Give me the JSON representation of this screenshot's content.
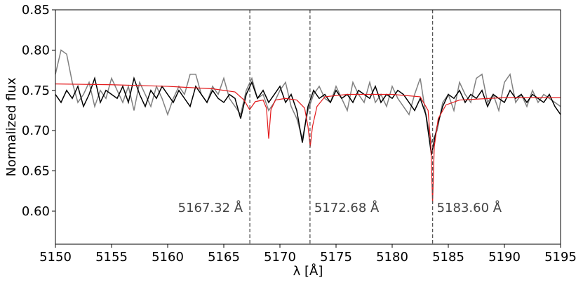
{
  "chart_data": {
    "type": "line",
    "xlabel": "λ [Å]",
    "ylabel": "Normalized flux",
    "xlim": [
      5150,
      5195
    ],
    "ylim": [
      0.559,
      0.85
    ],
    "xticks": [
      5150,
      5155,
      5160,
      5165,
      5170,
      5175,
      5180,
      5185,
      5190,
      5195
    ],
    "yticks": [
      {
        "value": 0.6,
        "label": "0.60"
      },
      0.65,
      {
        "value": 0.7,
        "label": "0.70"
      },
      0.75,
      {
        "value": 0.8,
        "label": "0.80"
      },
      0.85
    ],
    "x": [
      5150,
      5150.5,
      5151,
      5151.5,
      5152,
      5152.5,
      5153,
      5153.5,
      5154,
      5154.5,
      5155,
      5155.5,
      5156,
      5156.5,
      5157,
      5157.5,
      5158,
      5158.5,
      5159,
      5159.5,
      5160,
      5160.5,
      5161,
      5161.5,
      5162,
      5162.5,
      5163,
      5163.5,
      5164,
      5164.5,
      5165,
      5165.5,
      5166,
      5166.5,
      5167,
      5167.5,
      5168,
      5168.5,
      5169,
      5169.5,
      5170,
      5170.5,
      5171,
      5171.5,
      5172,
      5172.5,
      5173,
      5173.5,
      5174,
      5174.5,
      5175,
      5175.5,
      5176,
      5176.5,
      5177,
      5177.5,
      5178,
      5178.5,
      5179,
      5179.5,
      5180,
      5180.5,
      5181,
      5181.5,
      5182,
      5182.5,
      5183,
      5183.5,
      5184,
      5184.5,
      5185,
      5185.5,
      5186,
      5186.5,
      5187,
      5187.5,
      5188,
      5188.5,
      5189,
      5189.5,
      5190,
      5190.5,
      5191,
      5191.5,
      5192,
      5192.5,
      5193,
      5193.5,
      5194,
      5194.5,
      5195
    ],
    "series": [
      {
        "color": "#808080",
        "values": [
          0.77,
          0.8,
          0.795,
          0.76,
          0.735,
          0.745,
          0.76,
          0.73,
          0.75,
          0.74,
          0.765,
          0.75,
          0.735,
          0.755,
          0.725,
          0.76,
          0.745,
          0.73,
          0.755,
          0.74,
          0.72,
          0.74,
          0.755,
          0.745,
          0.77,
          0.77,
          0.745,
          0.735,
          0.755,
          0.745,
          0.765,
          0.74,
          0.73,
          0.72,
          0.75,
          0.765,
          0.74,
          0.745,
          0.725,
          0.735,
          0.75,
          0.76,
          0.73,
          0.715,
          0.69,
          0.725,
          0.745,
          0.755,
          0.74,
          0.735,
          0.755,
          0.74,
          0.725,
          0.76,
          0.745,
          0.735,
          0.76,
          0.735,
          0.745,
          0.73,
          0.755,
          0.74,
          0.73,
          0.72,
          0.745,
          0.765,
          0.72,
          0.685,
          0.7,
          0.735,
          0.745,
          0.725,
          0.76,
          0.745,
          0.735,
          0.765,
          0.77,
          0.735,
          0.745,
          0.725,
          0.76,
          0.77,
          0.735,
          0.745,
          0.73,
          0.75,
          0.735,
          0.745,
          0.74,
          0.735,
          0.73
        ]
      },
      {
        "color": "#000000",
        "values": [
          0.745,
          0.735,
          0.75,
          0.74,
          0.755,
          0.73,
          0.745,
          0.765,
          0.735,
          0.75,
          0.745,
          0.74,
          0.755,
          0.735,
          0.765,
          0.745,
          0.73,
          0.75,
          0.74,
          0.755,
          0.745,
          0.735,
          0.75,
          0.74,
          0.73,
          0.755,
          0.745,
          0.735,
          0.75,
          0.74,
          0.735,
          0.745,
          0.74,
          0.715,
          0.745,
          0.76,
          0.74,
          0.75,
          0.735,
          0.745,
          0.755,
          0.735,
          0.745,
          0.725,
          0.685,
          0.73,
          0.75,
          0.74,
          0.745,
          0.735,
          0.75,
          0.74,
          0.745,
          0.735,
          0.75,
          0.745,
          0.74,
          0.755,
          0.735,
          0.745,
          0.74,
          0.75,
          0.745,
          0.735,
          0.725,
          0.74,
          0.72,
          0.67,
          0.705,
          0.73,
          0.745,
          0.74,
          0.75,
          0.735,
          0.745,
          0.74,
          0.75,
          0.73,
          0.745,
          0.74,
          0.735,
          0.75,
          0.74,
          0.745,
          0.735,
          0.745,
          0.74,
          0.735,
          0.745,
          0.73,
          0.72
        ]
      },
      {
        "color": "#e31a1c",
        "x": [
          5150,
          5155,
          5160,
          5164,
          5166,
          5166.8,
          5167.3,
          5167.8,
          5168.5,
          5168.8,
          5169.0,
          5169.2,
          5169.6,
          5170.5,
          5171.5,
          5172.2,
          5172.5,
          5172.7,
          5172.9,
          5173.3,
          5174,
          5176,
          5180,
          5182.5,
          5183.2,
          5183.45,
          5183.6,
          5183.75,
          5184.1,
          5184.8,
          5186,
          5190,
          5195
        ],
        "values": [
          0.758,
          0.757,
          0.755,
          0.752,
          0.748,
          0.738,
          0.726,
          0.736,
          0.738,
          0.728,
          0.69,
          0.726,
          0.738,
          0.74,
          0.738,
          0.728,
          0.705,
          0.68,
          0.705,
          0.73,
          0.742,
          0.745,
          0.745,
          0.742,
          0.725,
          0.68,
          0.61,
          0.68,
          0.715,
          0.732,
          0.738,
          0.741,
          0.741
        ]
      }
    ],
    "annotations": [
      {
        "x": 5167.32,
        "text": "5167.32 Å"
      },
      {
        "x": 5172.68,
        "text": "5172.68 Å"
      },
      {
        "x": 5183.6,
        "text": "5183.60 Å"
      }
    ]
  }
}
